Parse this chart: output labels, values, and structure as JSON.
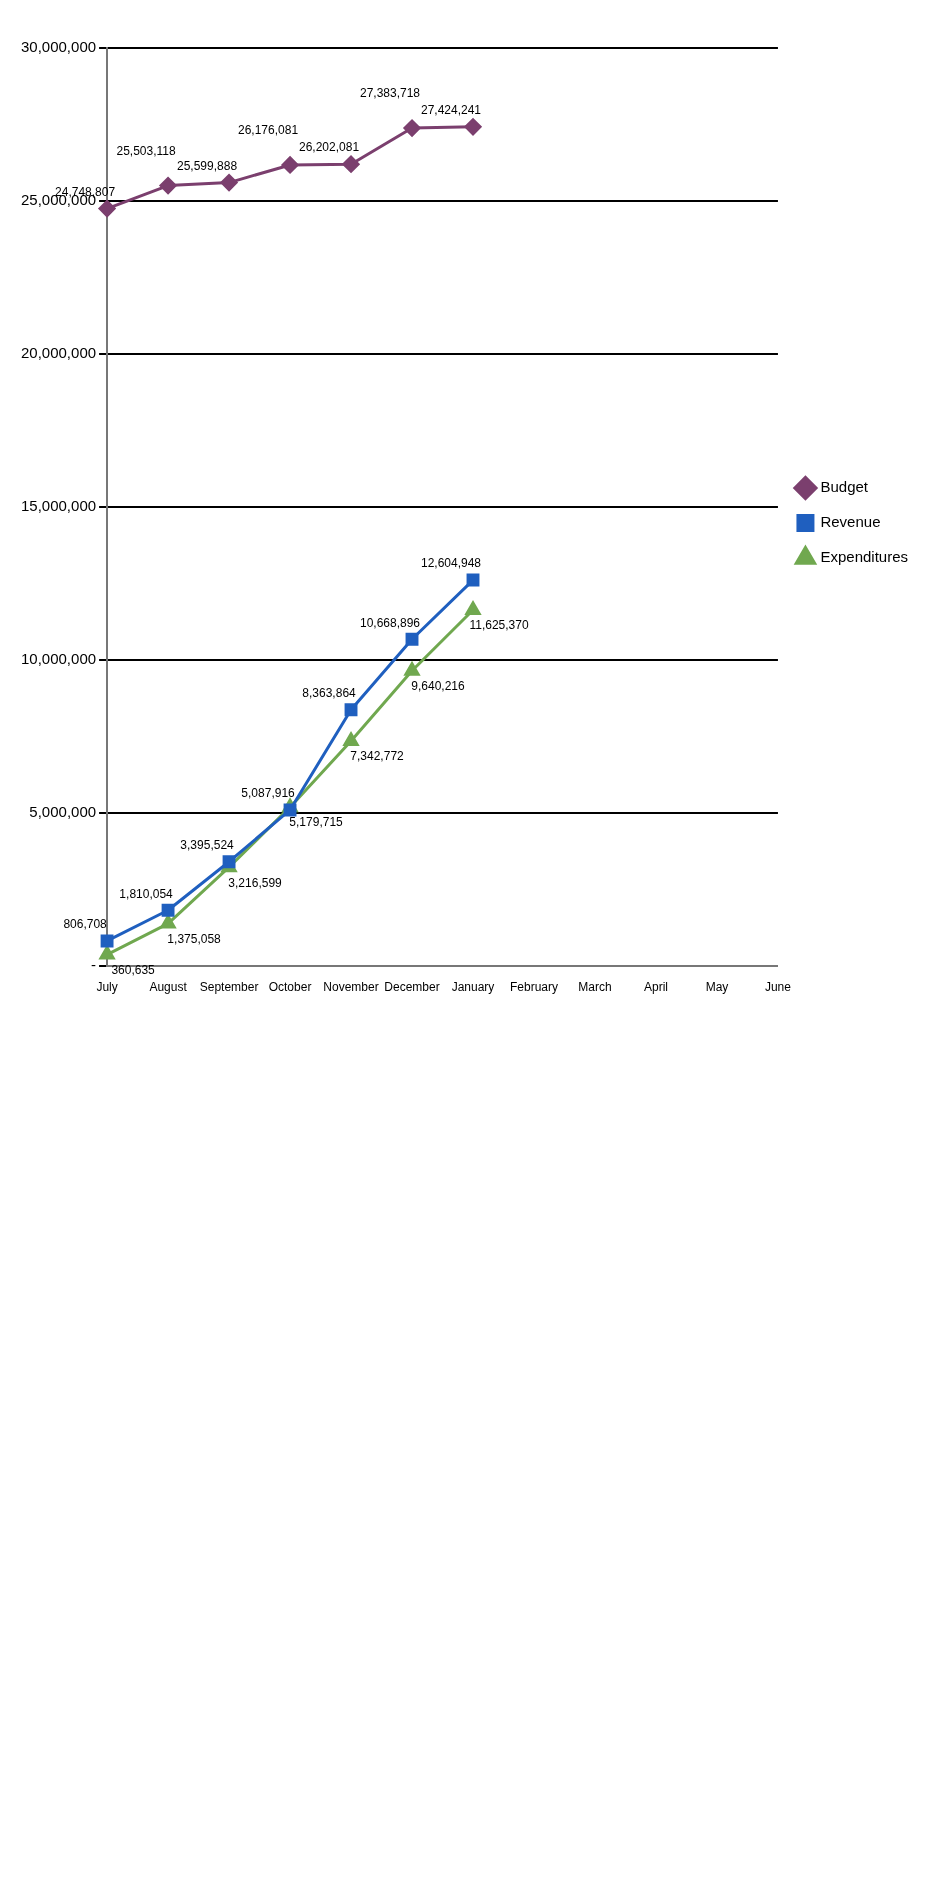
{
  "chart_data": {
    "type": "line",
    "categories": [
      "July",
      "August",
      "September",
      "October",
      "November",
      "December",
      "January",
      "February",
      "March",
      "April",
      "May",
      "June"
    ],
    "series": [
      {
        "name": "Budget",
        "color": "#7b3f6e",
        "marker": "diamond",
        "values": [
          24748807,
          25503118,
          25599888,
          26176081,
          26202081,
          27383718,
          27424241,
          null,
          null,
          null,
          null,
          null
        ],
        "value_labels": [
          "24,748,807",
          "25,503,118",
          "25,599,888",
          "26,176,081",
          "26,202,081",
          "27,383,718",
          "27,424,241",
          null,
          null,
          null,
          null,
          null
        ]
      },
      {
        "name": "Revenue",
        "color": "#1f5fbf",
        "marker": "square",
        "values": [
          806708,
          1810054,
          3395524,
          5087916,
          8363864,
          10668896,
          12604948,
          null,
          null,
          null,
          null,
          null
        ],
        "value_labels": [
          "806,708",
          "1,810,054",
          "3,395,524",
          "5,087,916",
          "8,363,864",
          "10,668,896",
          "12,604,948",
          null,
          null,
          null,
          null,
          null
        ]
      },
      {
        "name": "Expenditures",
        "color": "#70a84f",
        "marker": "triangle",
        "values": [
          360635,
          1375058,
          3216599,
          5179715,
          7342772,
          9640216,
          11625370,
          null,
          null,
          null,
          null,
          null
        ],
        "value_labels": [
          "360,635",
          "1,375,058",
          "3,216,599",
          "5,179,715",
          "7,342,772",
          "9,640,216",
          "11,625,370",
          null,
          null,
          null,
          null,
          null
        ]
      }
    ],
    "ylim": [
      0,
      30000000
    ],
    "yticks": [
      {
        "value": 0,
        "label": "-"
      },
      {
        "value": 5000000,
        "label": "5,000,000"
      },
      {
        "value": 10000000,
        "label": "10,000,000"
      },
      {
        "value": 15000000,
        "label": "15,000,000"
      },
      {
        "value": 20000000,
        "label": "20,000,000"
      },
      {
        "value": 25000000,
        "label": "25,000,000"
      },
      {
        "value": 30000000,
        "label": "30,000,000"
      }
    ],
    "grid": "y",
    "legend": "right"
  }
}
